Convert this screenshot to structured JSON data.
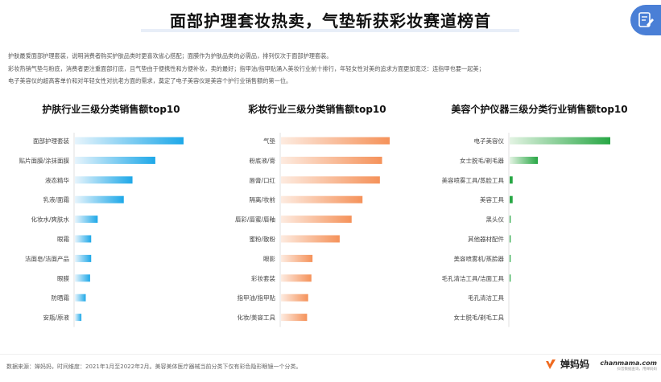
{
  "title": "面部护理套妆热卖，气垫斩获彩妆赛道榜首",
  "intro": [
    "护肤最爱面部护理套装，说明消费者购买护肤品类时更喜欢省心搭配；面膜作为护肤品类的必需品，排列仅次于面部护理套装。",
    "彩妆热销气垫与粉底，消费者更注重面部打底，且气垫由于便携性和方便补妆，卖的最好；指甲油/指甲贴涌入美妆行业前十排行，年轻女性对美的追求方面更加宽泛：连指甲也要一起美；",
    "电子美容仪的超高客单价和对年轻女性对抗老方面的需求，奠定了电子美容仪是美容个护行业销售额的第一位。"
  ],
  "footer": {
    "source": "数据来源：婵妈妈，时间维度：2021年1月至2022年2月。美容美体医疗器械当前分类下仅有彩色隐形眼镜一个分类。",
    "brand": "婵妈妈",
    "site": "chanmama.com",
    "site_tag": "抖音数据查询，用婵妈妈"
  },
  "chart_data": [
    {
      "type": "bar",
      "orientation": "horizontal",
      "title": "护肤行业三级分类销售额top10",
      "color_start": "#e6f4fc",
      "color_end": "#1ea8e8",
      "categories": [
        "面部护理套装",
        "贴片面膜/涂抹面膜",
        "液态精华",
        "乳液/面霜",
        "化妆水/爽肤水",
        "眼霜",
        "洁面皂/洁面产品",
        "眼膜",
        "防晒霜",
        "安瓶/原液"
      ],
      "values": [
        100,
        74,
        53,
        45,
        21,
        15,
        15,
        14,
        10,
        6
      ]
    },
    {
      "type": "bar",
      "orientation": "horizontal",
      "title": "彩妆行业三级分类销售额top10",
      "color_start": "#fdebe0",
      "color_end": "#f5925a",
      "categories": [
        "气垫",
        "粉底液/膏",
        "唇膏/口红",
        "隔离/妆前",
        "唇彩/唇蜜/唇釉",
        "蜜粉/散粉",
        "眼影",
        "彩妆套装",
        "指甲油/指甲贴",
        "化妆/美容工具"
      ],
      "values": [
        100,
        93,
        91,
        75,
        65,
        54,
        29,
        28,
        25,
        24
      ]
    },
    {
      "type": "bar",
      "orientation": "horizontal",
      "title": "美容个护仪器三级分类行业销售额top10",
      "color_start": "#e3f3e3",
      "color_end": "#28a745",
      "categories": [
        "电子美容仪",
        "女士脱毛/剃毛器",
        "美容喷雾工具/蒸脸工具",
        "美容工具",
        "黑头仪",
        "其他器材配件",
        "美容喷雾机/蒸脸器",
        "毛孔清洁工具/洁面工具",
        "毛孔清洁工具",
        "女士脱毛/剃毛工具"
      ],
      "values": [
        100,
        28,
        3,
        3,
        1,
        1,
        0.5,
        0.5,
        0,
        0
      ]
    }
  ]
}
